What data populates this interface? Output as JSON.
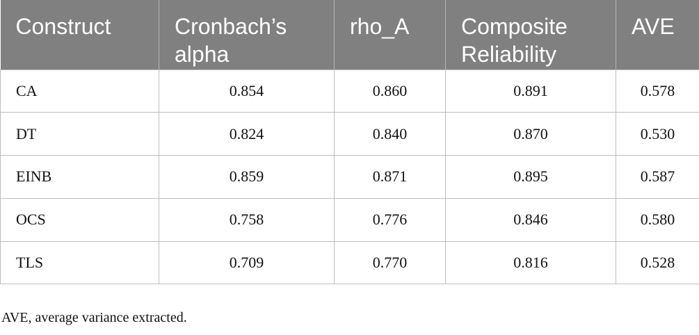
{
  "table": {
    "header": [
      "Construct",
      "Cronbach’s alpha",
      "rho_A",
      "Composite Reliability",
      "AVE"
    ],
    "rows": [
      [
        "CA",
        "0.854",
        "0.860",
        "0.891",
        "0.578"
      ],
      [
        "DT",
        "0.824",
        "0.840",
        "0.870",
        "0.530"
      ],
      [
        "EINB",
        "0.859",
        "0.871",
        "0.895",
        "0.587"
      ],
      [
        "OCS",
        "0.758",
        "0.776",
        "0.846",
        "0.580"
      ],
      [
        "TLS",
        "0.709",
        "0.770",
        "0.816",
        "0.528"
      ]
    ]
  },
  "footnote": "AVE, average variance extracted."
}
